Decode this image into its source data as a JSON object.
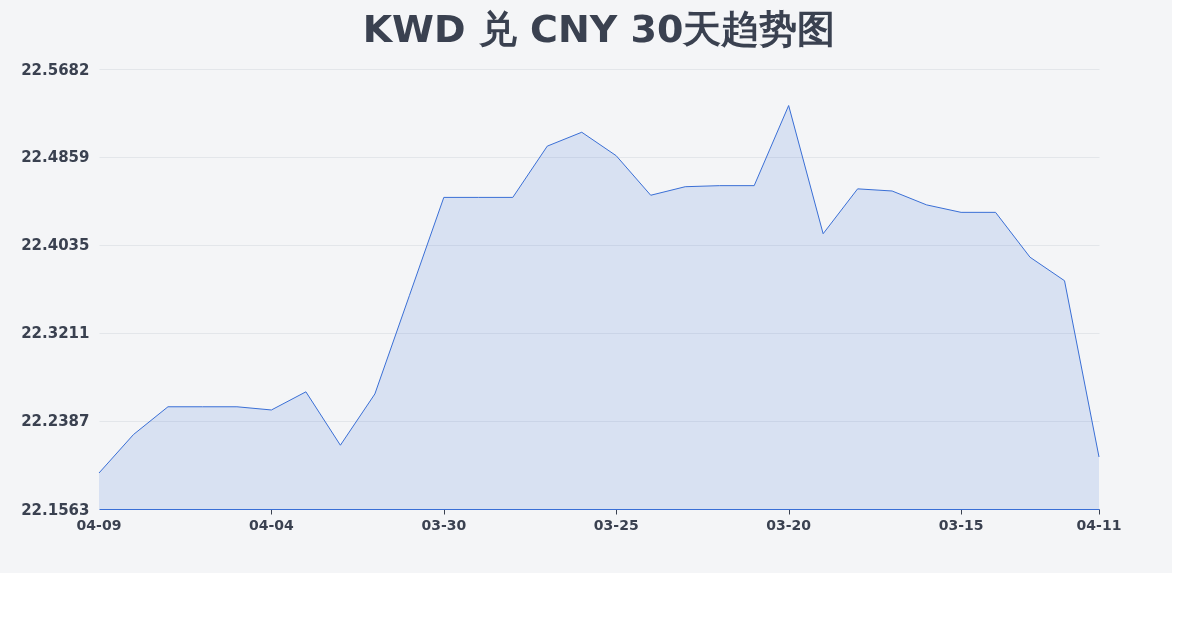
{
  "chart_data": {
    "type": "area",
    "title": "KWD 兑 CNY 30天趋势图",
    "categories": [
      "04-09",
      null,
      null,
      null,
      null,
      "04-04",
      null,
      null,
      null,
      null,
      "03-30",
      null,
      null,
      null,
      null,
      "03-25",
      null,
      null,
      null,
      null,
      "03-20",
      null,
      null,
      null,
      null,
      "03-15",
      null,
      null,
      null,
      "04-11"
    ],
    "series": [
      {
        "color": "#3a6fd6",
        "values": [
          22.19,
          22.226,
          22.252,
          22.252,
          22.252,
          22.249,
          22.266,
          22.216,
          22.264,
          22.356,
          22.448,
          22.448,
          22.448,
          22.496,
          22.509,
          22.487,
          22.45,
          22.458,
          22.459,
          22.459,
          22.534,
          22.414,
          22.456,
          22.454,
          22.441,
          22.434,
          22.434,
          22.392,
          22.37,
          22.205
        ]
      }
    ],
    "ylim": [
      22.1563,
      22.5682
    ],
    "yticks": [
      22.1563,
      22.2387,
      22.3211,
      22.4035,
      22.4859,
      22.5682
    ],
    "grid": "y",
    "marker": "none",
    "line_style": "solid"
  }
}
